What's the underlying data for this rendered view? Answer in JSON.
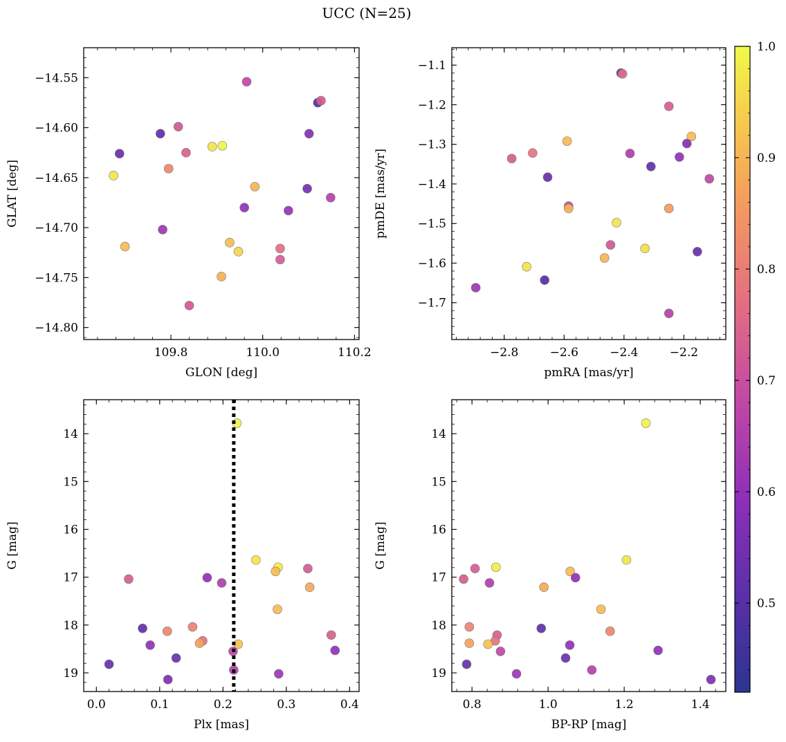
{
  "figure": {
    "title": "UCC (N=25)"
  },
  "colorbar": {
    "ticks": [
      "0.5",
      "0.6",
      "0.7",
      "0.8",
      "0.9",
      "1.0"
    ],
    "range": [
      0.42,
      1.0
    ],
    "colormap": "plasma"
  },
  "chart_data": [
    {
      "type": "scatter",
      "name": "glon-glat",
      "xlabel": "GLON [deg]",
      "ylabel": "GLAT [deg]",
      "xlim": [
        109.61,
        110.21
      ],
      "ylim": [
        -14.812,
        -14.52
      ],
      "xticks": [
        109.8,
        110.0,
        110.2
      ],
      "xtick_labels": [
        "109.8",
        "110.0",
        "110.2"
      ],
      "yticks": [
        -14.55,
        -14.6,
        -14.65,
        -14.7,
        -14.75,
        -14.8
      ],
      "ytick_labels": [
        "−14.55",
        "−14.60",
        "−14.65",
        "−14.70",
        "−14.75",
        "−14.80"
      ],
      "invert_y": false,
      "points": [
        {
          "x": 109.965,
          "y": -14.554,
          "c": 0.68
        },
        {
          "x": 110.12,
          "y": -14.575,
          "c": 0.48
        },
        {
          "x": 110.127,
          "y": -14.573,
          "c": 0.73
        },
        {
          "x": 109.777,
          "y": -14.606,
          "c": 0.52
        },
        {
          "x": 109.816,
          "y": -14.599,
          "c": 0.72
        },
        {
          "x": 110.101,
          "y": -14.606,
          "c": 0.58
        },
        {
          "x": 109.688,
          "y": -14.626,
          "c": 0.53
        },
        {
          "x": 109.833,
          "y": -14.625,
          "c": 0.74
        },
        {
          "x": 109.89,
          "y": -14.619,
          "c": 0.97
        },
        {
          "x": 109.912,
          "y": -14.618,
          "c": 0.99
        },
        {
          "x": 109.795,
          "y": -14.641,
          "c": 0.82
        },
        {
          "x": 109.675,
          "y": -14.648,
          "c": 0.97
        },
        {
          "x": 109.983,
          "y": -14.659,
          "c": 0.9
        },
        {
          "x": 110.097,
          "y": -14.661,
          "c": 0.55
        },
        {
          "x": 110.148,
          "y": -14.67,
          "c": 0.66
        },
        {
          "x": 109.96,
          "y": -14.68,
          "c": 0.6
        },
        {
          "x": 110.056,
          "y": -14.683,
          "c": 0.61
        },
        {
          "x": 109.782,
          "y": -14.702,
          "c": 0.62
        },
        {
          "x": 109.7,
          "y": -14.719,
          "c": 0.91
        },
        {
          "x": 109.928,
          "y": -14.715,
          "c": 0.91
        },
        {
          "x": 110.038,
          "y": -14.721,
          "c": 0.77
        },
        {
          "x": 109.947,
          "y": -14.724,
          "c": 0.95
        },
        {
          "x": 110.038,
          "y": -14.732,
          "c": 0.73
        },
        {
          "x": 109.91,
          "y": -14.749,
          "c": 0.89
        },
        {
          "x": 109.84,
          "y": -14.778,
          "c": 0.72
        }
      ]
    },
    {
      "type": "scatter",
      "name": "pmra-pmde",
      "xlabel": "pmRA [mas/yr]",
      "ylabel": "pmDE [mas/yr]",
      "xlim": [
        -2.975,
        -2.06
      ],
      "ylim": [
        -1.793,
        -1.056
      ],
      "xticks": [
        -2.8,
        -2.6,
        -2.4,
        -2.2
      ],
      "xtick_labels": [
        "−2.8",
        "−2.6",
        "−2.4",
        "−2.2"
      ],
      "yticks": [
        -1.1,
        -1.2,
        -1.3,
        -1.4,
        -1.5,
        -1.6,
        -1.7
      ],
      "ytick_labels": [
        "−1.1",
        "−1.2",
        "−1.3",
        "−1.4",
        "−1.5",
        "−1.6",
        "−1.7"
      ],
      "invert_y": false,
      "points": [
        {
          "x": -2.41,
          "y": -1.12,
          "c": 0.48
        },
        {
          "x": -2.405,
          "y": -1.122,
          "c": 0.77
        },
        {
          "x": -2.25,
          "y": -1.204,
          "c": 0.73
        },
        {
          "x": -2.175,
          "y": -1.28,
          "c": 0.91
        },
        {
          "x": -2.19,
          "y": -1.298,
          "c": 0.58
        },
        {
          "x": -2.59,
          "y": -1.292,
          "c": 0.91
        },
        {
          "x": -2.705,
          "y": -1.322,
          "c": 0.78
        },
        {
          "x": -2.38,
          "y": -1.323,
          "c": 0.65
        },
        {
          "x": -2.775,
          "y": -1.336,
          "c": 0.73
        },
        {
          "x": -2.215,
          "y": -1.332,
          "c": 0.6
        },
        {
          "x": -2.31,
          "y": -1.356,
          "c": 0.52
        },
        {
          "x": -2.655,
          "y": -1.383,
          "c": 0.53
        },
        {
          "x": -2.115,
          "y": -1.387,
          "c": 0.68
        },
        {
          "x": -2.585,
          "y": -1.456,
          "c": 0.69
        },
        {
          "x": -2.585,
          "y": -1.462,
          "c": 0.9
        },
        {
          "x": -2.25,
          "y": -1.462,
          "c": 0.86
        },
        {
          "x": -2.425,
          "y": -1.498,
          "c": 0.97
        },
        {
          "x": -2.445,
          "y": -1.554,
          "c": 0.72
        },
        {
          "x": -2.33,
          "y": -1.563,
          "c": 0.96
        },
        {
          "x": -2.155,
          "y": -1.571,
          "c": 0.53
        },
        {
          "x": -2.465,
          "y": -1.587,
          "c": 0.9
        },
        {
          "x": -2.725,
          "y": -1.609,
          "c": 0.97
        },
        {
          "x": -2.665,
          "y": -1.643,
          "c": 0.5
        },
        {
          "x": -2.895,
          "y": -1.662,
          "c": 0.62
        },
        {
          "x": -2.25,
          "y": -1.727,
          "c": 0.66
        }
      ]
    },
    {
      "type": "scatter",
      "name": "plx-g",
      "xlabel": "Plx [mas]",
      "ylabel": "G [mag]",
      "xlim": [
        -0.02,
        0.415
      ],
      "ylim": [
        19.39,
        13.29
      ],
      "xticks": [
        0.0,
        0.1,
        0.2,
        0.3,
        0.4
      ],
      "xtick_labels": [
        "0.0",
        "0.1",
        "0.2",
        "0.3",
        "0.4"
      ],
      "yticks": [
        14,
        15,
        16,
        17,
        18,
        19
      ],
      "ytick_labels": [
        "14",
        "15",
        "16",
        "17",
        "18",
        "19"
      ],
      "invert_y": true,
      "vline": {
        "x": 0.217
      },
      "points": [
        {
          "x": 0.222,
          "y": 13.78,
          "c": 0.99
        },
        {
          "x": 0.252,
          "y": 16.64,
          "c": 0.97
        },
        {
          "x": 0.287,
          "y": 16.79,
          "c": 0.98
        },
        {
          "x": 0.334,
          "y": 16.82,
          "c": 0.73
        },
        {
          "x": 0.283,
          "y": 16.88,
          "c": 0.91
        },
        {
          "x": 0.175,
          "y": 17.01,
          "c": 0.6
        },
        {
          "x": 0.051,
          "y": 17.04,
          "c": 0.73
        },
        {
          "x": 0.198,
          "y": 17.12,
          "c": 0.65
        },
        {
          "x": 0.337,
          "y": 17.21,
          "c": 0.88
        },
        {
          "x": 0.286,
          "y": 17.67,
          "c": 0.91
        },
        {
          "x": 0.152,
          "y": 18.04,
          "c": 0.81
        },
        {
          "x": 0.073,
          "y": 18.07,
          "c": 0.52
        },
        {
          "x": 0.112,
          "y": 18.13,
          "c": 0.82
        },
        {
          "x": 0.371,
          "y": 18.21,
          "c": 0.74
        },
        {
          "x": 0.168,
          "y": 18.33,
          "c": 0.78
        },
        {
          "x": 0.163,
          "y": 18.38,
          "c": 0.87
        },
        {
          "x": 0.224,
          "y": 18.4,
          "c": 0.92
        },
        {
          "x": 0.085,
          "y": 18.42,
          "c": 0.6
        },
        {
          "x": 0.216,
          "y": 18.55,
          "c": 0.68
        },
        {
          "x": 0.377,
          "y": 18.53,
          "c": 0.6
        },
        {
          "x": 0.126,
          "y": 18.69,
          "c": 0.54
        },
        {
          "x": 0.02,
          "y": 18.82,
          "c": 0.53
        },
        {
          "x": 0.217,
          "y": 18.94,
          "c": 0.66
        },
        {
          "x": 0.288,
          "y": 19.02,
          "c": 0.62
        },
        {
          "x": 0.113,
          "y": 19.14,
          "c": 0.57
        }
      ]
    },
    {
      "type": "scatter",
      "name": "bprp-g",
      "xlabel": "BP-RP [mag]",
      "ylabel": "G [mag]",
      "xlim": [
        0.747,
        1.467
      ],
      "ylim": [
        19.39,
        13.29
      ],
      "xticks": [
        0.8,
        1.0,
        1.2,
        1.4
      ],
      "xtick_labels": [
        "0.8",
        "1.0",
        "1.2",
        "1.4"
      ],
      "yticks": [
        14,
        15,
        16,
        17,
        18,
        19
      ],
      "ytick_labels": [
        "14",
        "15",
        "16",
        "17",
        "18",
        "19"
      ],
      "invert_y": true,
      "points": [
        {
          "x": 1.257,
          "y": 13.78,
          "c": 0.99
        },
        {
          "x": 1.206,
          "y": 16.64,
          "c": 0.97
        },
        {
          "x": 0.863,
          "y": 16.79,
          "c": 0.98
        },
        {
          "x": 0.808,
          "y": 16.82,
          "c": 0.73
        },
        {
          "x": 1.058,
          "y": 16.88,
          "c": 0.91
        },
        {
          "x": 1.072,
          "y": 17.01,
          "c": 0.6
        },
        {
          "x": 0.778,
          "y": 17.04,
          "c": 0.73
        },
        {
          "x": 0.846,
          "y": 17.12,
          "c": 0.65
        },
        {
          "x": 0.989,
          "y": 17.21,
          "c": 0.88
        },
        {
          "x": 1.139,
          "y": 17.67,
          "c": 0.91
        },
        {
          "x": 0.793,
          "y": 18.04,
          "c": 0.81
        },
        {
          "x": 0.982,
          "y": 18.07,
          "c": 0.52
        },
        {
          "x": 1.163,
          "y": 18.13,
          "c": 0.82
        },
        {
          "x": 0.866,
          "y": 18.21,
          "c": 0.74
        },
        {
          "x": 0.861,
          "y": 18.33,
          "c": 0.78
        },
        {
          "x": 0.793,
          "y": 18.38,
          "c": 0.87
        },
        {
          "x": 0.842,
          "y": 18.4,
          "c": 0.92
        },
        {
          "x": 1.057,
          "y": 18.42,
          "c": 0.6
        },
        {
          "x": 0.875,
          "y": 18.55,
          "c": 0.68
        },
        {
          "x": 1.289,
          "y": 18.53,
          "c": 0.6
        },
        {
          "x": 1.046,
          "y": 18.69,
          "c": 0.54
        },
        {
          "x": 0.786,
          "y": 18.82,
          "c": 0.53
        },
        {
          "x": 1.115,
          "y": 18.94,
          "c": 0.66
        },
        {
          "x": 0.917,
          "y": 19.02,
          "c": 0.62
        },
        {
          "x": 1.428,
          "y": 19.14,
          "c": 0.57
        }
      ]
    }
  ]
}
